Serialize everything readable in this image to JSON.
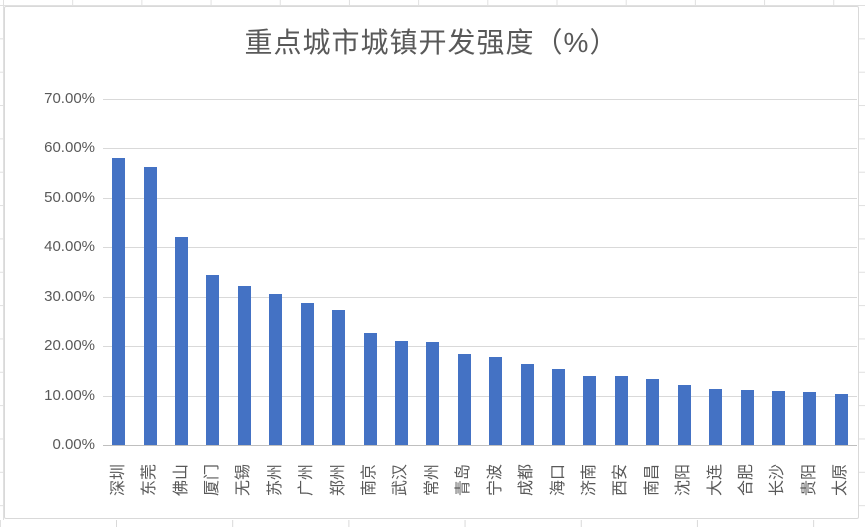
{
  "sheet": {
    "gridline_color": "#e0e0e0"
  },
  "chart_data": {
    "type": "bar",
    "title": "重点城市城镇开发强度（%）",
    "xlabel": "",
    "ylabel": "",
    "ylim": [
      0,
      70
    ],
    "grid": true,
    "legend": false,
    "categories": [
      "深圳",
      "东莞",
      "佛山",
      "厦门",
      "无锡",
      "苏州",
      "广州",
      "郑州",
      "南京",
      "武汉",
      "常州",
      "青岛",
      "宁波",
      "成都",
      "海口",
      "济南",
      "西安",
      "南昌",
      "沈阳",
      "大连",
      "合肥",
      "长沙",
      "贵阳",
      "太原"
    ],
    "values": [
      58.0,
      56.3,
      42.0,
      34.3,
      32.1,
      30.5,
      28.8,
      27.3,
      22.7,
      21.0,
      20.9,
      18.4,
      17.8,
      16.4,
      15.3,
      14.0,
      14.0,
      13.4,
      12.1,
      11.3,
      11.2,
      10.9,
      10.8,
      10.3
    ],
    "ytick_values": [
      0,
      10,
      20,
      30,
      40,
      50,
      60,
      70
    ],
    "ytick_labels": [
      "0.00%",
      "10.00%",
      "20.00%",
      "30.00%",
      "40.00%",
      "50.00%",
      "60.00%",
      "70.00%"
    ],
    "colors": {
      "bar": "#4472C4",
      "title_text": "#595959",
      "axis_text": "#595959",
      "gridline": "#d9d9d9",
      "axis_line": "#bfbfbf"
    }
  }
}
